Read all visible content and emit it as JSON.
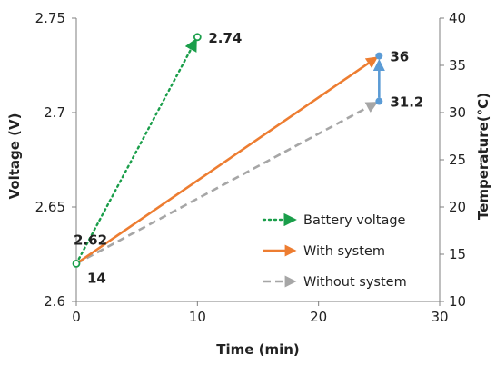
{
  "chart_data": {
    "type": "line",
    "xlabel": "Time (min)",
    "ylabel": "Voltage (V)",
    "y2label": "Temperature(°C)",
    "xlim": [
      0,
      30
    ],
    "ylim": [
      2.6,
      2.75
    ],
    "y2lim": [
      10,
      40
    ],
    "x_ticks": [
      "0",
      "10",
      "20",
      "30"
    ],
    "y_ticks": [
      "2.6",
      "2.65",
      "2.7",
      "2.75"
    ],
    "y2_ticks": [
      "10",
      "15",
      "20",
      "25",
      "30",
      "35",
      "40"
    ],
    "grid": false,
    "legend_position": "bottom-right",
    "series": [
      {
        "name": "Battery voltage",
        "axis": "left",
        "color": "#1a9e4a",
        "style": "dotted",
        "points": [
          [
            0,
            2.62
          ],
          [
            10,
            2.74
          ]
        ]
      },
      {
        "name": "With system",
        "axis": "right",
        "color": "#ed7d31",
        "style": "solid",
        "points": [
          [
            0,
            14
          ],
          [
            25,
            36
          ]
        ]
      },
      {
        "name": "Without system",
        "axis": "right",
        "color": "#a6a6a6",
        "style": "dashed",
        "points": [
          [
            0,
            14
          ],
          [
            25,
            31.2
          ]
        ]
      }
    ],
    "difference_marker": {
      "x": 25,
      "from": 31.2,
      "to": 36,
      "axis": "right",
      "color": "#5b9bd5"
    },
    "annotations": [
      {
        "text": "2.74",
        "x": 10,
        "y": 2.74,
        "axis": "left",
        "anchor": "right"
      },
      {
        "text": "2.62",
        "x": 0,
        "y": 2.62,
        "axis": "left",
        "anchor": "above"
      },
      {
        "text": "14",
        "x": 0,
        "y": 14,
        "axis": "right",
        "anchor": "below-right"
      },
      {
        "text": "36",
        "x": 25,
        "y": 36,
        "axis": "right",
        "anchor": "right"
      },
      {
        "text": "31.2",
        "x": 25,
        "y": 31.2,
        "axis": "right",
        "anchor": "right"
      }
    ]
  }
}
